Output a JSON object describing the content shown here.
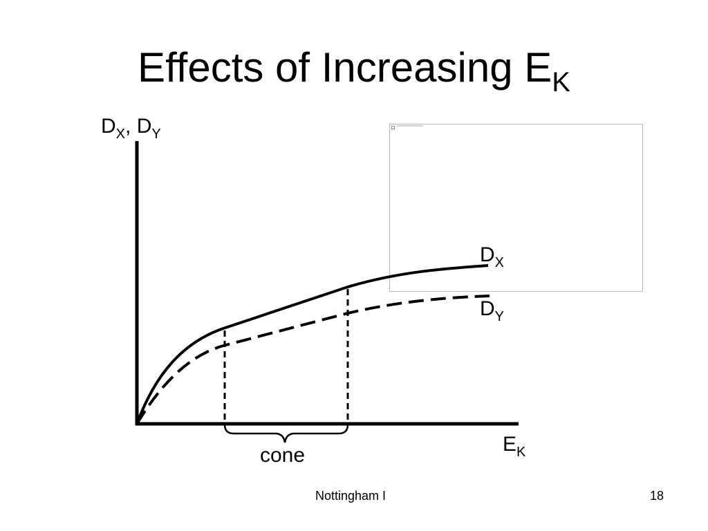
{
  "slide": {
    "title": {
      "text": "Effects of Increasing E",
      "sub": "K"
    },
    "footer_center": "Nottingham I",
    "page_number": "18"
  },
  "diagram": {
    "y_axis_label": {
      "a": "D",
      "a_sub": "X",
      "sep": ", ",
      "b": "D",
      "b_sub": "Y"
    },
    "x_axis_label": {
      "text": "E",
      "sub": "K"
    },
    "curve_dx_label": {
      "text": "D",
      "sub": "X"
    },
    "curve_dy_label": {
      "text": "D",
      "sub": "Y"
    },
    "brace_label": "cone",
    "colors": {
      "ink": "#000000",
      "embed_border": "#b8b8b8"
    }
  }
}
